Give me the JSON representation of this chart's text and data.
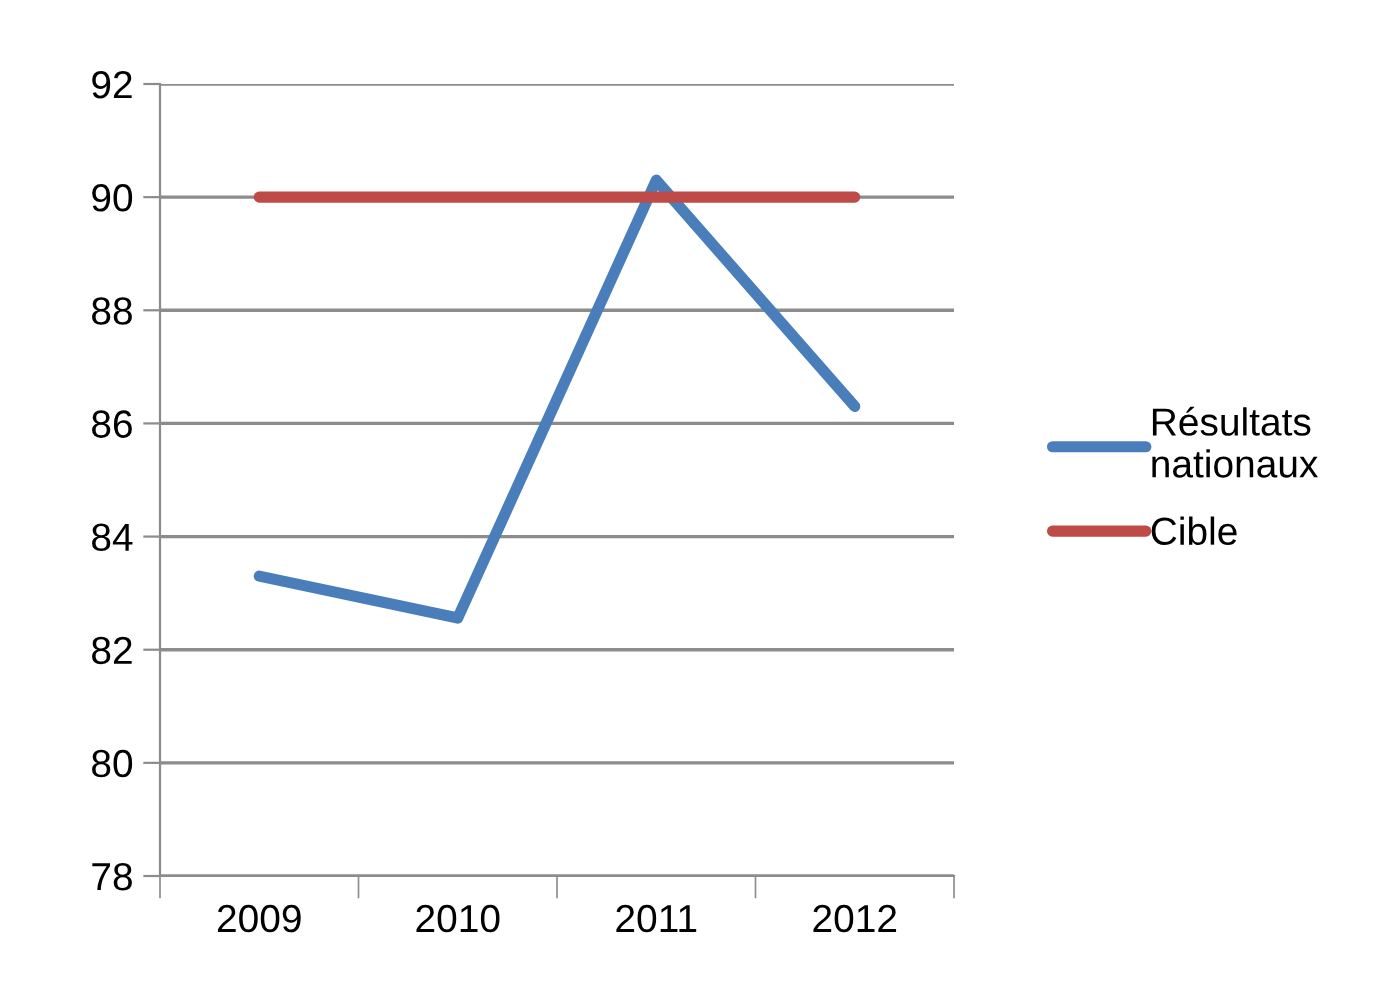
{
  "chart_data": {
    "type": "line",
    "categories": [
      "2009",
      "2010",
      "2011",
      "2012"
    ],
    "series": [
      {
        "name": "Résultats\nnationaux",
        "color": "#4a7ebb",
        "values": [
          83.3,
          82.56,
          90.3,
          86.3
        ]
      },
      {
        "name": "Cible",
        "color": "#be4b48",
        "values": [
          90,
          90,
          90,
          90
        ]
      }
    ],
    "ylim": [
      78,
      92
    ],
    "yticks": [
      78,
      80,
      82,
      84,
      86,
      88,
      90,
      92
    ],
    "grid": "y",
    "legend": "right",
    "marker": "none",
    "line_style": "solid"
  }
}
